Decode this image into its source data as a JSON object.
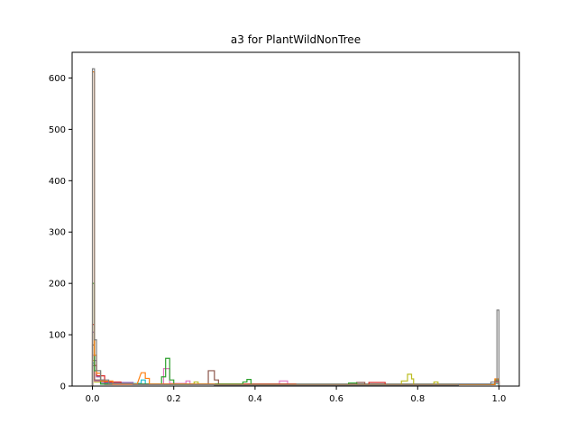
{
  "chart_data": {
    "type": "histogram-step",
    "title": "a3 for PlantWildNonTree",
    "xlabel": "",
    "ylabel": "",
    "xlim": [
      -0.05,
      1.05
    ],
    "ylim": [
      0,
      650
    ],
    "x_ticks": [
      0.0,
      0.2,
      0.4,
      0.6,
      0.8,
      1.0
    ],
    "x_tick_labels": [
      "0.0",
      "0.2",
      "0.4",
      "0.6",
      "0.8",
      "1.0"
    ],
    "y_ticks": [
      0,
      100,
      200,
      300,
      400,
      500,
      600
    ],
    "y_tick_labels": [
      "0",
      "100",
      "200",
      "300",
      "400",
      "500",
      "600"
    ],
    "grid": false,
    "series": [
      {
        "color": "#7f7f7f",
        "bins": [
          [
            0.0,
            0.005,
            618
          ],
          [
            0.005,
            0.01,
            90
          ],
          [
            0.01,
            0.02,
            30
          ],
          [
            0.02,
            0.04,
            12
          ],
          [
            0.04,
            0.1,
            5
          ],
          [
            0.1,
            0.3,
            3
          ],
          [
            0.3,
            0.6,
            2
          ],
          [
            0.6,
            0.9,
            2
          ],
          [
            0.9,
            0.98,
            4
          ],
          [
            0.98,
            0.995,
            8
          ],
          [
            0.995,
            1.0,
            148
          ]
        ]
      },
      {
        "color": "#ff7f0e",
        "bins": [
          [
            0.0,
            0.005,
            612
          ],
          [
            0.005,
            0.01,
            60
          ],
          [
            0.01,
            0.02,
            25
          ],
          [
            0.02,
            0.05,
            10
          ],
          [
            0.05,
            0.11,
            4
          ],
          [
            0.12,
            0.13,
            26
          ],
          [
            0.13,
            0.14,
            15
          ],
          [
            0.14,
            0.3,
            4
          ],
          [
            0.3,
            0.7,
            3
          ],
          [
            0.7,
            0.99,
            3
          ],
          [
            0.99,
            1.0,
            14
          ]
        ]
      },
      {
        "color": "#2ca02c",
        "bins": [
          [
            0.0,
            0.005,
            200
          ],
          [
            0.005,
            0.02,
            30
          ],
          [
            0.02,
            0.17,
            4
          ],
          [
            0.17,
            0.18,
            18
          ],
          [
            0.18,
            0.19,
            54
          ],
          [
            0.19,
            0.2,
            12
          ],
          [
            0.2,
            0.37,
            4
          ],
          [
            0.37,
            0.38,
            8
          ],
          [
            0.38,
            0.39,
            13
          ],
          [
            0.39,
            0.63,
            3
          ],
          [
            0.63,
            0.65,
            6
          ],
          [
            0.65,
            0.99,
            3
          ],
          [
            0.99,
            1.0,
            12
          ]
        ]
      },
      {
        "color": "#d62728",
        "bins": [
          [
            0.0,
            0.005,
            120
          ],
          [
            0.005,
            0.01,
            40
          ],
          [
            0.01,
            0.03,
            20
          ],
          [
            0.03,
            0.07,
            8
          ],
          [
            0.07,
            0.5,
            4
          ],
          [
            0.5,
            0.68,
            3
          ],
          [
            0.68,
            0.72,
            7
          ],
          [
            0.72,
            0.99,
            3
          ],
          [
            0.99,
            1.0,
            10
          ]
        ]
      },
      {
        "color": "#9467bd",
        "bins": [
          [
            0.0,
            0.005,
            105
          ],
          [
            0.005,
            0.01,
            50
          ],
          [
            0.01,
            0.02,
            18
          ],
          [
            0.02,
            0.1,
            7
          ],
          [
            0.1,
            0.3,
            4
          ],
          [
            0.3,
            0.99,
            3
          ],
          [
            0.99,
            1.0,
            9
          ]
        ]
      },
      {
        "color": "#8c564b",
        "bins": [
          [
            0.0,
            0.005,
            80
          ],
          [
            0.005,
            0.03,
            12
          ],
          [
            0.03,
            0.285,
            4
          ],
          [
            0.285,
            0.3,
            30
          ],
          [
            0.3,
            0.31,
            12
          ],
          [
            0.31,
            0.65,
            3
          ],
          [
            0.65,
            0.67,
            7
          ],
          [
            0.67,
            0.99,
            3
          ],
          [
            0.99,
            1.0,
            8
          ]
        ]
      },
      {
        "color": "#e377c2",
        "bins": [
          [
            0.0,
            0.005,
            60
          ],
          [
            0.005,
            0.03,
            10
          ],
          [
            0.03,
            0.175,
            3
          ],
          [
            0.175,
            0.19,
            34
          ],
          [
            0.19,
            0.23,
            5
          ],
          [
            0.23,
            0.24,
            10
          ],
          [
            0.24,
            0.46,
            3
          ],
          [
            0.46,
            0.48,
            10
          ],
          [
            0.48,
            0.99,
            3
          ],
          [
            0.99,
            1.0,
            7
          ]
        ]
      },
      {
        "color": "#bcbd22",
        "bins": [
          [
            0.0,
            0.005,
            50
          ],
          [
            0.005,
            0.03,
            8
          ],
          [
            0.03,
            0.25,
            3
          ],
          [
            0.25,
            0.26,
            8
          ],
          [
            0.26,
            0.76,
            3
          ],
          [
            0.76,
            0.775,
            10
          ],
          [
            0.775,
            0.785,
            23
          ],
          [
            0.785,
            0.79,
            14
          ],
          [
            0.79,
            0.84,
            3
          ],
          [
            0.84,
            0.85,
            8
          ],
          [
            0.85,
            0.99,
            3
          ],
          [
            0.99,
            1.0,
            6
          ]
        ]
      },
      {
        "color": "#17becf",
        "bins": [
          [
            0.0,
            0.005,
            45
          ],
          [
            0.005,
            0.03,
            10
          ],
          [
            0.03,
            0.12,
            5
          ],
          [
            0.12,
            0.13,
            12
          ],
          [
            0.13,
            0.99,
            3
          ],
          [
            0.99,
            1.0,
            5
          ]
        ]
      },
      {
        "color": "#1f77b4",
        "bins": [
          [
            0.0,
            0.005,
            40
          ],
          [
            0.005,
            0.02,
            10
          ],
          [
            0.02,
            0.99,
            4
          ],
          [
            0.99,
            1.0,
            5
          ]
        ]
      }
    ]
  }
}
